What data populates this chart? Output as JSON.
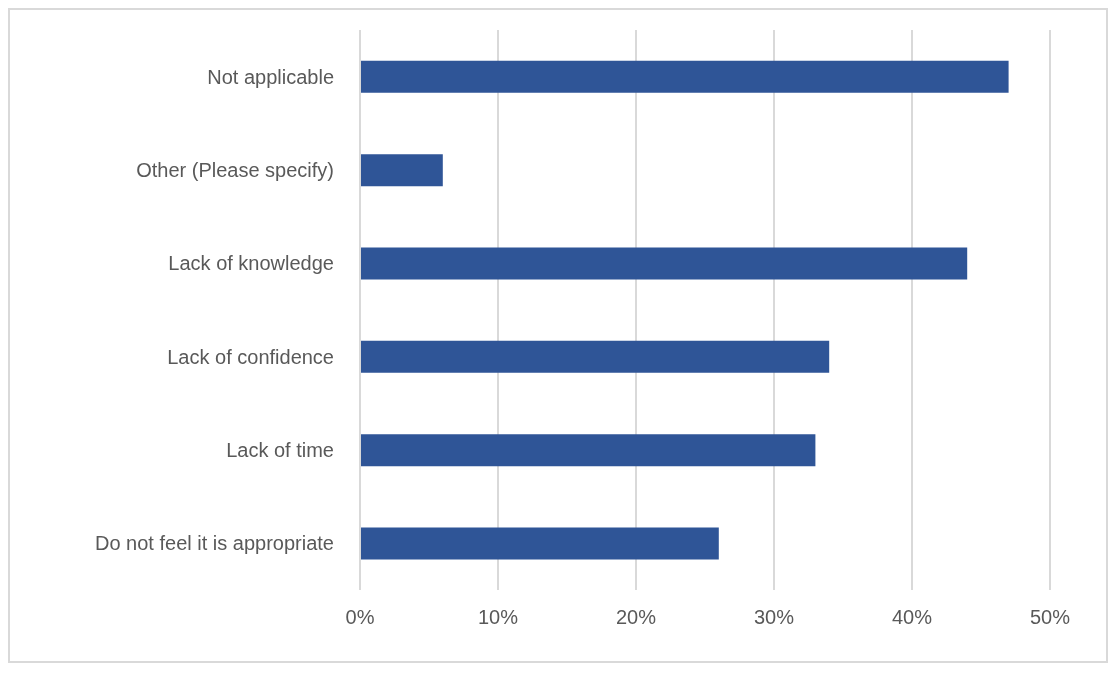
{
  "chart_data": {
    "type": "bar",
    "orientation": "horizontal",
    "categories": [
      "Not applicable",
      "Other (Please specify)",
      "Lack of knowledge",
      "Lack of confidence",
      "Lack of time",
      "Do not feel it is appropriate"
    ],
    "values": [
      47,
      6,
      44,
      34,
      33,
      26
    ],
    "color": "#2f5597",
    "xlim": [
      0,
      50
    ],
    "xticks": [
      {
        "value": 0,
        "label": "0%"
      },
      {
        "value": 10,
        "label": "10%"
      },
      {
        "value": 20,
        "label": "20%"
      },
      {
        "value": 30,
        "label": "30%"
      },
      {
        "value": 40,
        "label": "40%"
      },
      {
        "value": 50,
        "label": "50%"
      }
    ],
    "grid": "x"
  }
}
